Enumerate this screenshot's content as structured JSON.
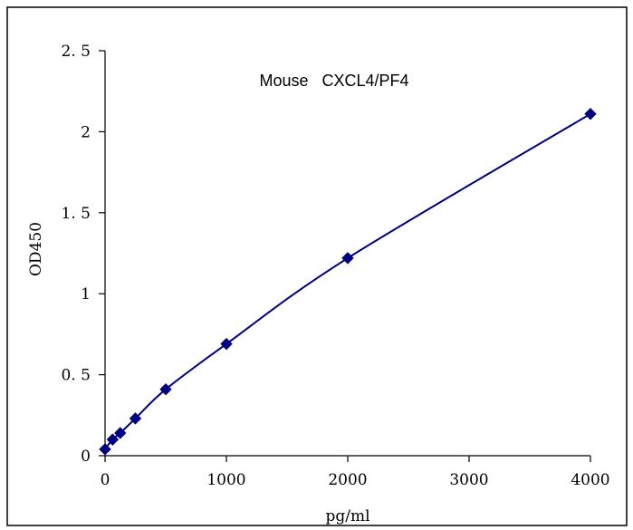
{
  "chart_data": {
    "type": "scatter",
    "title": "Mouse   CXCL4/PF4",
    "xlabel": "pg/ml",
    "ylabel": "OD450",
    "xlim": [
      0,
      4000
    ],
    "ylim": [
      0,
      2.5
    ],
    "x_ticks": [
      0,
      1000,
      2000,
      3000,
      4000
    ],
    "x_tick_labels": [
      "0",
      "1000",
      "2000",
      "3000",
      "4000"
    ],
    "y_ticks": [
      0,
      0.5,
      1,
      1.5,
      2,
      2.5
    ],
    "y_tick_labels": [
      "0",
      "0. 5",
      "1",
      "1. 5",
      "2",
      "2. 5"
    ],
    "grid": false,
    "legend": "none",
    "marker": "diamond",
    "line": "smooth",
    "color": "#000080",
    "series": [
      {
        "x": [
          0,
          62.5,
          125,
          250,
          500,
          1000,
          2000,
          4000
        ],
        "y": [
          0.04,
          0.1,
          0.14,
          0.23,
          0.41,
          0.69,
          1.22,
          2.11
        ]
      }
    ]
  }
}
